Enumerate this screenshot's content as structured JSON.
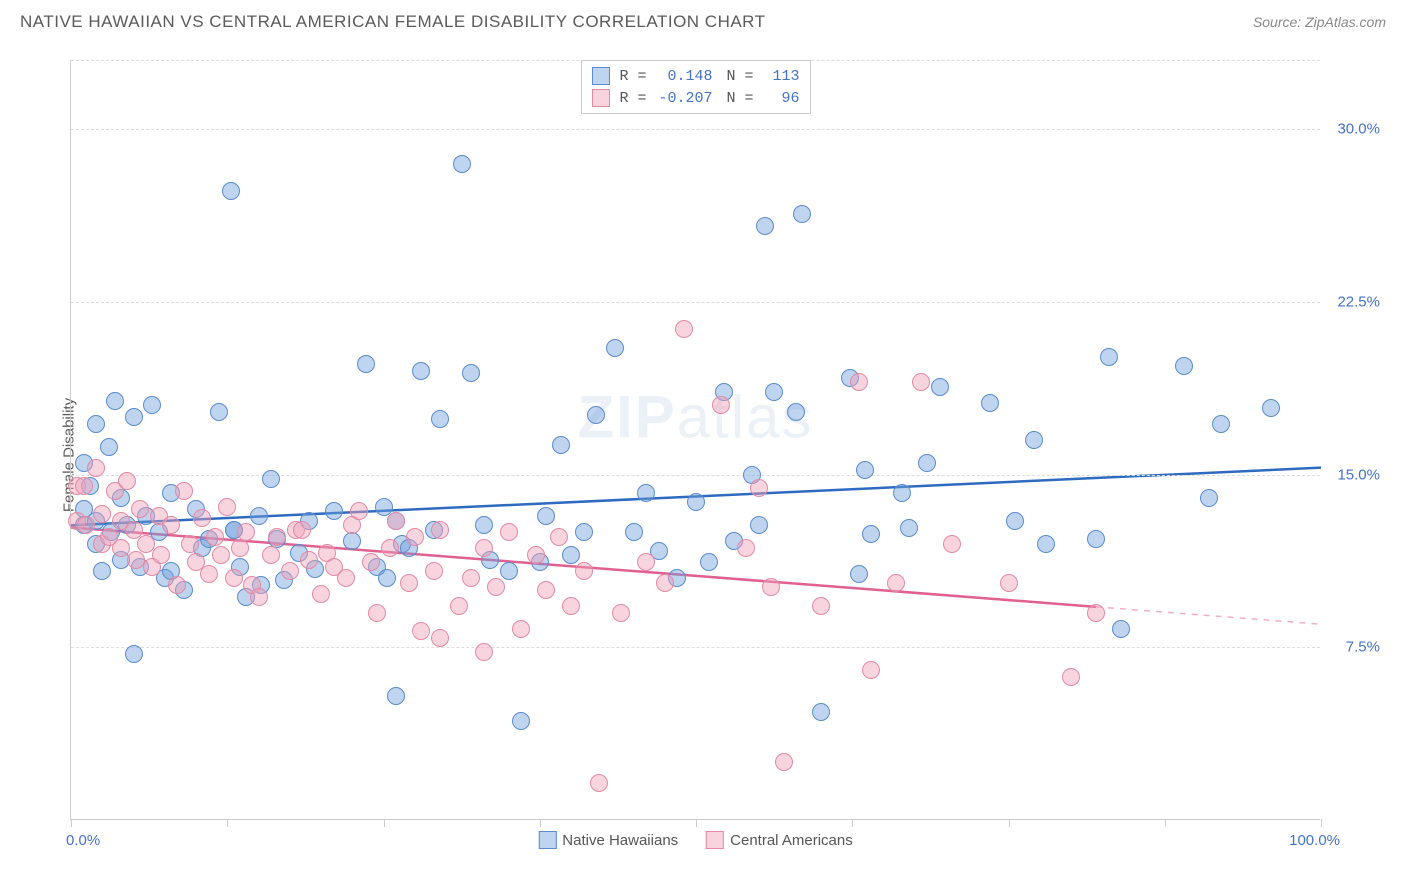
{
  "header": {
    "title": "NATIVE HAWAIIAN VS CENTRAL AMERICAN FEMALE DISABILITY CORRELATION CHART",
    "source": "Source: ZipAtlas.com"
  },
  "watermark": {
    "zip": "ZIP",
    "atlas": "atlas"
  },
  "ylabel": "Female Disability",
  "chart": {
    "type": "scatter",
    "background": "#ffffff",
    "grid_color": "#dddddd",
    "axis_color": "#cccccc",
    "xlim": [
      0,
      100
    ],
    "ylim": [
      0,
      33
    ],
    "yticks": [
      {
        "val": 7.5,
        "label": "7.5%"
      },
      {
        "val": 15.0,
        "label": "15.0%"
      },
      {
        "val": 22.5,
        "label": "22.5%"
      },
      {
        "val": 30.0,
        "label": "30.0%"
      }
    ],
    "xtick_positions": [
      0,
      12.5,
      25,
      37.5,
      50,
      62.5,
      75,
      87.5,
      100
    ],
    "xtick_labels": {
      "start": "0.0%",
      "end": "100.0%"
    },
    "marker_radius": 9,
    "marker_border_width": 1,
    "series": [
      {
        "name": "Native Hawaiians",
        "fill": "rgba(110,160,220,0.45)",
        "stroke": "#5b8cc9",
        "r_value": "0.148",
        "n_value": "113",
        "trend": {
          "color": "#2e6bc0",
          "width": 2.5,
          "y_at_x0": 12.8,
          "y_at_x100": 15.3,
          "solid_end_x": 100
        },
        "points": [
          [
            1,
            15.5
          ],
          [
            1,
            13.5
          ],
          [
            1,
            12.8
          ],
          [
            1.5,
            14.5
          ],
          [
            2,
            13
          ],
          [
            2,
            17.2
          ],
          [
            2,
            12
          ],
          [
            2.5,
            10.8
          ],
          [
            3,
            16.2
          ],
          [
            3.2,
            12.5
          ],
          [
            3.5,
            18.2
          ],
          [
            4,
            14
          ],
          [
            4,
            11.3
          ],
          [
            4.5,
            12.8
          ],
          [
            5,
            7.2
          ],
          [
            5,
            17.5
          ],
          [
            5.5,
            11
          ],
          [
            6,
            13.2
          ],
          [
            6.5,
            18
          ],
          [
            7,
            12.5
          ],
          [
            7.5,
            10.5
          ],
          [
            8,
            14.2
          ],
          [
            8,
            10.8
          ],
          [
            9,
            10
          ],
          [
            10,
            13.5
          ],
          [
            10.5,
            11.8
          ],
          [
            11,
            12.2
          ],
          [
            11.8,
            17.7
          ],
          [
            12.8,
            27.3
          ],
          [
            13,
            12.6
          ],
          [
            13,
            12.6
          ],
          [
            13.5,
            11
          ],
          [
            14,
            9.7
          ],
          [
            15,
            13.2
          ],
          [
            15.2,
            10.2
          ],
          [
            16,
            14.8
          ],
          [
            16.5,
            12.2
          ],
          [
            17,
            10.4
          ],
          [
            18.2,
            11.6
          ],
          [
            19,
            13
          ],
          [
            19.5,
            10.9
          ],
          [
            21,
            13.4
          ],
          [
            22.5,
            12.1
          ],
          [
            23.6,
            19.8
          ],
          [
            24.5,
            11
          ],
          [
            25.3,
            10.5
          ],
          [
            25,
            13.6
          ],
          [
            26,
            5.4
          ],
          [
            26,
            13
          ],
          [
            26.5,
            12
          ],
          [
            27,
            11.8
          ],
          [
            28,
            19.5
          ],
          [
            29,
            12.6
          ],
          [
            29.5,
            17.4
          ],
          [
            31.3,
            28.5
          ],
          [
            32,
            19.4
          ],
          [
            33,
            12.8
          ],
          [
            33.5,
            11.3
          ],
          [
            35,
            10.8
          ],
          [
            36,
            4.3
          ],
          [
            37.5,
            11.2
          ],
          [
            38,
            13.2
          ],
          [
            39.2,
            16.3
          ],
          [
            40,
            11.5
          ],
          [
            41,
            12.5
          ],
          [
            42,
            17.6
          ],
          [
            43.5,
            20.5
          ],
          [
            45,
            12.5
          ],
          [
            46,
            14.2
          ],
          [
            47,
            11.7
          ],
          [
            48.5,
            10.5
          ],
          [
            50,
            13.8
          ],
          [
            51,
            11.2
          ],
          [
            52.2,
            18.6
          ],
          [
            53,
            12.1
          ],
          [
            54.5,
            15
          ],
          [
            55,
            12.8
          ],
          [
            56.2,
            18.6
          ],
          [
            55.5,
            25.8
          ],
          [
            58.5,
            26.3
          ],
          [
            58,
            17.7
          ],
          [
            60,
            4.7
          ],
          [
            62.3,
            19.2
          ],
          [
            63,
            10.7
          ],
          [
            63.5,
            15.2
          ],
          [
            64,
            12.4
          ],
          [
            66.5,
            14.2
          ],
          [
            67,
            12.7
          ],
          [
            68.5,
            15.5
          ],
          [
            69.5,
            18.8
          ],
          [
            73.5,
            18.1
          ],
          [
            75.5,
            13
          ],
          [
            77,
            16.5
          ],
          [
            78,
            12
          ],
          [
            82,
            12.2
          ],
          [
            83,
            20.1
          ],
          [
            84,
            8.3
          ],
          [
            89,
            19.7
          ],
          [
            91,
            14
          ],
          [
            92,
            17.2
          ],
          [
            96,
            17.9
          ]
        ]
      },
      {
        "name": "Central Americans",
        "fill": "rgba(240,160,185,0.45)",
        "stroke": "#e28aa5",
        "r_value": "-0.207",
        "n_value": "96",
        "trend": {
          "color": "#e06090",
          "width": 2.5,
          "y_at_x0": 12.7,
          "y_at_x100": 8.5,
          "solid_end_x": 82
        },
        "points": [
          [
            0.5,
            14.5
          ],
          [
            0.5,
            13
          ],
          [
            1,
            14.5
          ],
          [
            1.2,
            12.8
          ],
          [
            2,
            15.3
          ],
          [
            2.5,
            13.3
          ],
          [
            2.5,
            12
          ],
          [
            3,
            12.3
          ],
          [
            3.5,
            14.3
          ],
          [
            4,
            13
          ],
          [
            4,
            11.8
          ],
          [
            4.5,
            14.7
          ],
          [
            5,
            12.6
          ],
          [
            5.2,
            11.3
          ],
          [
            5.5,
            13.5
          ],
          [
            6,
            12
          ],
          [
            6.5,
            11
          ],
          [
            7,
            13.2
          ],
          [
            7.2,
            11.5
          ],
          [
            8,
            12.8
          ],
          [
            8.5,
            10.2
          ],
          [
            9,
            14.3
          ],
          [
            9.5,
            12
          ],
          [
            10,
            11.2
          ],
          [
            10.5,
            13.1
          ],
          [
            11,
            10.7
          ],
          [
            11.5,
            12.3
          ],
          [
            12,
            11.5
          ],
          [
            12.5,
            13.6
          ],
          [
            13,
            10.5
          ],
          [
            13.5,
            11.8
          ],
          [
            14,
            12.5
          ],
          [
            14.5,
            10.2
          ],
          [
            15,
            9.7
          ],
          [
            16,
            11.5
          ],
          [
            16.5,
            12.3
          ],
          [
            17.5,
            10.8
          ],
          [
            18,
            12.6
          ],
          [
            18.5,
            12.6
          ],
          [
            19,
            11.3
          ],
          [
            20,
            9.8
          ],
          [
            20.5,
            11.6
          ],
          [
            21,
            11
          ],
          [
            22,
            10.5
          ],
          [
            22.5,
            12.8
          ],
          [
            23,
            13.4
          ],
          [
            24,
            11.2
          ],
          [
            24.5,
            9.0
          ],
          [
            25.5,
            11.8
          ],
          [
            26,
            13
          ],
          [
            27,
            10.3
          ],
          [
            27.5,
            12.3
          ],
          [
            28,
            8.2
          ],
          [
            29,
            10.8
          ],
          [
            29.5,
            7.9
          ],
          [
            29.5,
            12.6
          ],
          [
            31,
            9.3
          ],
          [
            32,
            10.5
          ],
          [
            33,
            11.8
          ],
          [
            33,
            7.3
          ],
          [
            34,
            10.1
          ],
          [
            35,
            12.5
          ],
          [
            36,
            8.3
          ],
          [
            37.2,
            11.5
          ],
          [
            38,
            10
          ],
          [
            39,
            12.3
          ],
          [
            40,
            9.3
          ],
          [
            41,
            10.8
          ],
          [
            42.2,
            1.6
          ],
          [
            44,
            9.0
          ],
          [
            46,
            11.2
          ],
          [
            47.5,
            10.3
          ],
          [
            49,
            21.3
          ],
          [
            52,
            18.0
          ],
          [
            54,
            11.8
          ],
          [
            55,
            14.4
          ],
          [
            56,
            10.1
          ],
          [
            57,
            2.5
          ],
          [
            60,
            9.3
          ],
          [
            63,
            19
          ],
          [
            64,
            6.5
          ],
          [
            66,
            10.3
          ],
          [
            68,
            19.0
          ],
          [
            70.5,
            12
          ],
          [
            75,
            10.3
          ],
          [
            80,
            6.2
          ],
          [
            82,
            9.0
          ]
        ]
      }
    ]
  },
  "legend_bottom": [
    {
      "label": "Native Hawaiians",
      "fill": "rgba(110,160,220,0.45)",
      "stroke": "#5b8cc9"
    },
    {
      "label": "Central Americans",
      "fill": "rgba(240,160,185,0.45)",
      "stroke": "#e28aa5"
    }
  ]
}
